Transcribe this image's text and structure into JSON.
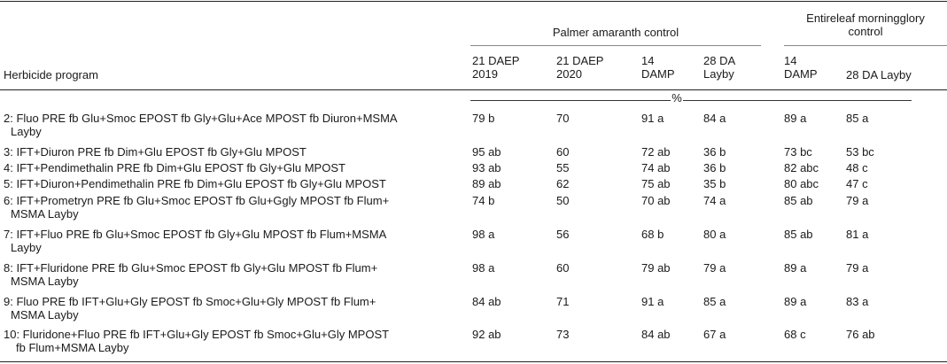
{
  "table": {
    "group_headers": {
      "palmer": "Palmer amaranth control",
      "morningglory_line1": "Entireleaf morningglory",
      "morningglory_line2": "control"
    },
    "columns": {
      "program": "Herbicide program",
      "c1_l1": "21 DAEP",
      "c1_l2": "2019",
      "c2_l1": "21 DAEP",
      "c2_l2": "2020",
      "c3_l1": "14",
      "c3_l2": "DAMP",
      "c4_l1": "28 DA",
      "c4_l2": "Layby",
      "c5_l1": "14",
      "c5_l2": "DAMP",
      "c6_l1": "28 DA Layby"
    },
    "units_label": "%",
    "rows": [
      {
        "program_l1": "2: Fluo PRE fb Glu+Smoc EPOST fb Gly+Glu+Ace MPOST fb Diuron+MSMA",
        "program_l2": "Layby",
        "v": [
          "79 b",
          "70",
          "91 a",
          "84 a",
          "89 a",
          "85 a"
        ]
      },
      {
        "program_l1": "3: IFT+Diuron PRE fb Dim+Glu EPOST fb Gly+Glu MPOST",
        "program_l2": "",
        "v": [
          "95 ab",
          "60",
          "72 ab",
          "36 b",
          "73 bc",
          "53 bc"
        ]
      },
      {
        "program_l1": "4: IFT+Pendimethalin PRE fb Dim+Glu EPOST fb Gly+Glu MPOST",
        "program_l2": "",
        "v": [
          "93 ab",
          "55",
          "74 ab",
          "36 b",
          "82 abc",
          "48 c"
        ]
      },
      {
        "program_l1": "5: IFT+Diuron+Pendimethalin PRE fb Dim+Glu EPOST fb Gly+Glu MPOST",
        "program_l2": "",
        "v": [
          "89 ab",
          "62",
          "75 ab",
          "35 b",
          "80 abc",
          "47 c"
        ]
      },
      {
        "program_l1": "6: IFT+Prometryn PRE fb Glu+Smoc EPOST fb Glu+Ggly MPOST fb Flum+",
        "program_l2": "MSMA Layby",
        "v": [
          "74 b",
          "50",
          "70 ab",
          "74 a",
          "85 ab",
          "79 a"
        ]
      },
      {
        "program_l1": "7: IFT+Fluo PRE fb Glu+Smoc EPOST fb Gly+Glu MPOST fb Flum+MSMA",
        "program_l2": "Layby",
        "v": [
          "98 a",
          "56",
          "68 b",
          "80 a",
          "85 ab",
          "81 a"
        ]
      },
      {
        "program_l1": "8: IFT+Fluridone PRE fb Glu+Smoc EPOST fb Gly+Glu MPOST fb Flum+",
        "program_l2": "MSMA Layby",
        "v": [
          "98 a",
          "60",
          "79 ab",
          "79 a",
          "89 a",
          "79 a"
        ]
      },
      {
        "program_l1": "9: Fluo PRE fb IFT+Glu+Gly EPOST fb Smoc+Glu+Gly MPOST fb Flum+",
        "program_l2": "MSMA Layby",
        "v": [
          "84 ab",
          "71",
          "91 a",
          "85 a",
          "89 a",
          "83 a"
        ]
      },
      {
        "program_l1": "10: Fluridone+Fluo PRE fb IFT+Glu+Gly EPOST fb Smoc+Glu+Gly MPOST",
        "program_l2": "fb Flum+MSMA Layby",
        "v": [
          "92 ab",
          "73",
          "84 ab",
          "67 a",
          "68 c",
          "76 ab"
        ]
      }
    ]
  }
}
